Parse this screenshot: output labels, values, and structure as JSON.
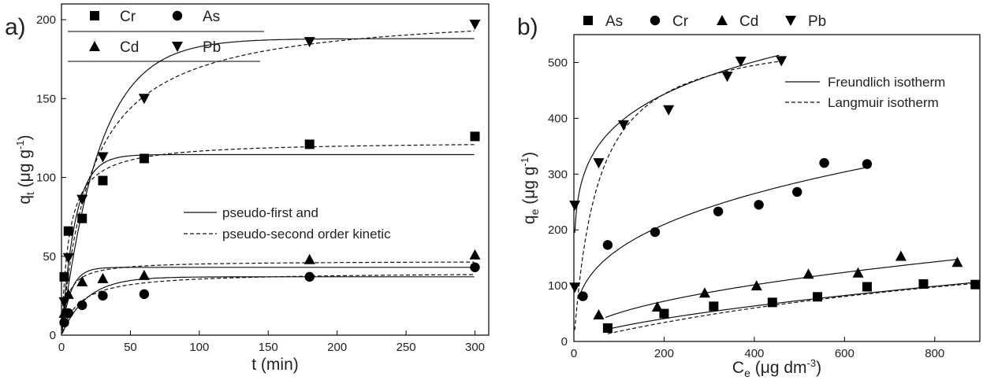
{
  "chart_data": [
    {
      "panel_label": "a)",
      "type": "scatter",
      "xlabel": "t (min)",
      "ylabel": "q_t (μg g⁻¹)",
      "ylabel_main": "q",
      "ylabel_sub": "t",
      "ylabel_unit": "(μg g",
      "ylabel_sup": "-1",
      "ylabel_close": ")",
      "xlim": [
        0,
        310
      ],
      "ylim": [
        0,
        210
      ],
      "xticks": [
        0,
        50,
        100,
        150,
        200,
        250,
        300
      ],
      "yticks": [
        0,
        50,
        100,
        150,
        200
      ],
      "legend_placement": "top-left",
      "line_legend": [
        {
          "label": "pseudo-first and",
          "style": "solid"
        },
        {
          "label": "pseudo-second order kinetic",
          "style": "dashed"
        }
      ],
      "series": [
        {
          "name": "Cr",
          "marker": "square",
          "x": [
            2,
            5,
            15,
            30,
            60,
            180,
            300
          ],
          "y": [
            37,
            66,
            74,
            98,
            112,
            121,
            126
          ],
          "fit_first": {
            "qe": 114.5,
            "k": 0.1
          },
          "fit_second": {
            "qe": 123,
            "k": 0.0015
          }
        },
        {
          "name": "As",
          "marker": "circle",
          "x": [
            2,
            5,
            15,
            30,
            60,
            180,
            300
          ],
          "y": [
            8,
            14,
            19,
            25,
            26,
            37,
            43
          ],
          "fit_first": {
            "qe": 37,
            "k": 0.055
          },
          "fit_second": {
            "qe": 40,
            "k": 0.002
          }
        },
        {
          "name": "Cd",
          "marker": "triangle-up",
          "x": [
            2,
            5,
            15,
            30,
            60,
            180,
            300
          ],
          "y": [
            14,
            26,
            34,
            36,
            38,
            48,
            51
          ],
          "fit_first": {
            "qe": 43,
            "k": 0.15
          },
          "fit_second": {
            "qe": 47,
            "k": 0.005
          }
        },
        {
          "name": "Pb",
          "marker": "triangle-down",
          "x": [
            2,
            5,
            15,
            30,
            60,
            180,
            300
          ],
          "y": [
            21,
            49,
            86,
            113,
            150,
            186,
            197
          ],
          "fit_first": {
            "qe": 188,
            "k": 0.036
          },
          "fit_second": {
            "qe": 207,
            "k": 0.00022
          }
        }
      ]
    },
    {
      "panel_label": "b)",
      "type": "scatter",
      "xlabel_main": "C",
      "xlabel_sub": "e",
      "xlabel_unit": "(μg dm",
      "xlabel_sup": "-3",
      "xlabel_close": ")",
      "ylabel_main": "q",
      "ylabel_sub": "e",
      "ylabel_unit": "(μg g",
      "ylabel_sup": "-1",
      "ylabel_close": ")",
      "xlim": [
        0,
        900
      ],
      "ylim": [
        0,
        550
      ],
      "xticks": [
        0,
        200,
        400,
        600,
        800
      ],
      "yticks": [
        0,
        100,
        200,
        300,
        400,
        500
      ],
      "legend_placement": "top",
      "line_legend": [
        {
          "label": "Freundlich isotherm",
          "style": "solid"
        },
        {
          "label": "Langmuir isotherm",
          "style": "dashed"
        }
      ],
      "series": [
        {
          "name": "As",
          "marker": "square",
          "x": [
            75,
            200,
            310,
            440,
            540,
            650,
            775,
            890
          ],
          "y": [
            24,
            50,
            63,
            70,
            80,
            98,
            103,
            102
          ],
          "fit_freundlich": {
            "k": 1.4,
            "n": 1.57,
            "xmin": 75,
            "xmax": 900
          },
          "fit_langmuir": {
            "qm": 260,
            "b": 0.00075,
            "xmin": 75,
            "xmax": 900
          }
        },
        {
          "name": "Cr",
          "marker": "circle",
          "x": [
            20,
            75,
            180,
            320,
            410,
            495,
            555,
            650
          ],
          "y": [
            81,
            173,
            196,
            233,
            245,
            268,
            320,
            318
          ],
          "fit_freundlich": {
            "k": 35,
            "n": 2.96,
            "xmin": 10,
            "xmax": 650
          }
        },
        {
          "name": "Cd",
          "marker": "triangle-up",
          "x": [
            55,
            185,
            290,
            405,
            520,
            630,
            725,
            850
          ],
          "y": [
            48,
            62,
            87,
            100,
            121,
            123,
            153,
            142
          ],
          "fit_freundlich": {
            "k": 5.3,
            "n": 2.03,
            "xmin": 70,
            "xmax": 855
          }
        },
        {
          "name": "Pb",
          "marker": "triangle-down",
          "x": [
            2,
            55,
            110,
            210,
            370,
            460,
            340
          ],
          "y": [
            244,
            320,
            388,
            415,
            502,
            503,
            475
          ],
          "fit_freundlich": {
            "k": 172,
            "n": 5.6,
            "xmin": 2,
            "xmax": 455
          },
          "fit_langmuir": {
            "qm": 560,
            "b": 0.019,
            "xmin": 2,
            "xmax": 455
          }
        },
        {
          "name": "",
          "marker": "triangle-down",
          "x": [
            2
          ],
          "y": [
            97
          ],
          "extra_point": true
        }
      ]
    }
  ]
}
